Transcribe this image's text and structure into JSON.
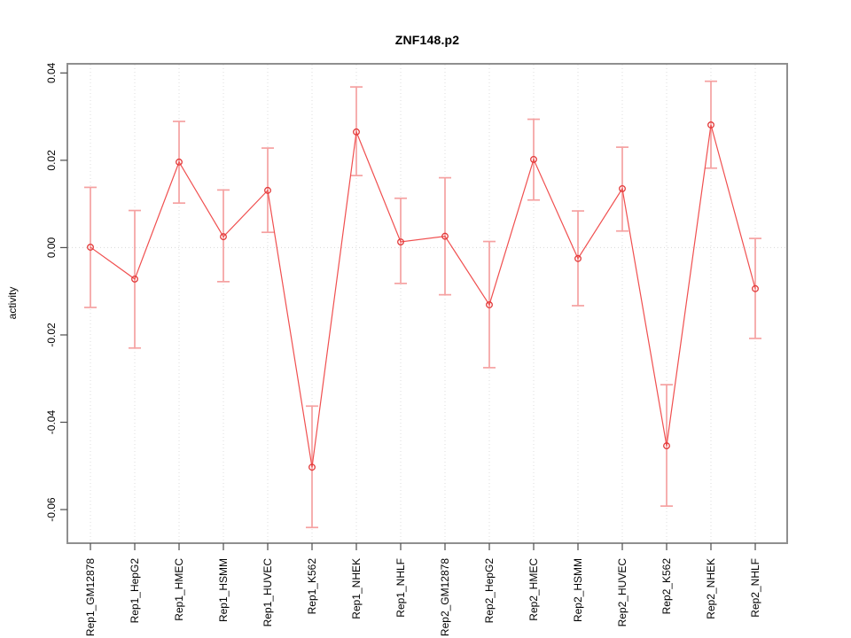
{
  "title": "ZNF148.p2",
  "chart_data": {
    "type": "line",
    "title": "ZNF148.p2",
    "xlabel": "",
    "ylabel": "activity",
    "legend": "none",
    "grid": "dotted vertical gridline at each category plus dotted horizontal line at y=0",
    "point_style": "open circles with error bars, single red series",
    "categories": [
      "Rep1_GM12878",
      "Rep1_HepG2",
      "Rep1_HMEC",
      "Rep1_HSMM",
      "Rep1_HUVEC",
      "Rep1_K562",
      "Rep1_NHEK",
      "Rep1_NHLF",
      "Rep2_GM12878",
      "Rep2_HepG2",
      "Rep2_HMEC",
      "Rep2_HSMM",
      "Rep2_HUVEC",
      "Rep2_K562",
      "Rep2_NHEK",
      "Rep2_NHLF"
    ],
    "series": [
      {
        "name": "activity",
        "values": [
          0.0001,
          -0.0072,
          0.0196,
          0.0025,
          0.0131,
          -0.0503,
          0.0265,
          0.0013,
          0.0026,
          -0.0131,
          0.0202,
          -0.0025,
          0.0135,
          -0.0454,
          0.0281,
          -0.0094
        ]
      }
    ],
    "error_bars": {
      "lower": [
        -0.0137,
        -0.023,
        0.0102,
        -0.0078,
        0.0035,
        -0.0641,
        0.0165,
        -0.0082,
        -0.0108,
        -0.0275,
        0.0109,
        -0.0133,
        0.0038,
        -0.0592,
        0.0182,
        -0.0208
      ],
      "upper": [
        0.0138,
        0.0085,
        0.0289,
        0.0132,
        0.0228,
        -0.0363,
        0.0368,
        0.0113,
        0.016,
        0.0014,
        0.0294,
        0.0084,
        0.023,
        -0.0314,
        0.0381,
        0.0021
      ]
    },
    "y_ticks": {
      "labels": [
        "0.04",
        "0.02",
        "0.00",
        "-0.02",
        "-0.04",
        "-0.06"
      ],
      "values": [
        0.04,
        0.02,
        0.0,
        -0.02,
        -0.04,
        -0.06
      ]
    },
    "ylim": [
      -0.0677,
      0.0421
    ],
    "colors": {
      "line": "#f04f4f",
      "point_stroke": "#e23b3b",
      "error_bar": "#f5a1a1",
      "grid": "#dcdcdc",
      "zero_line": "#d8d8d8",
      "border": "#8f8f8f",
      "tick": "#4d4d4d",
      "text": "#000000",
      "background": "#ffffff"
    }
  }
}
